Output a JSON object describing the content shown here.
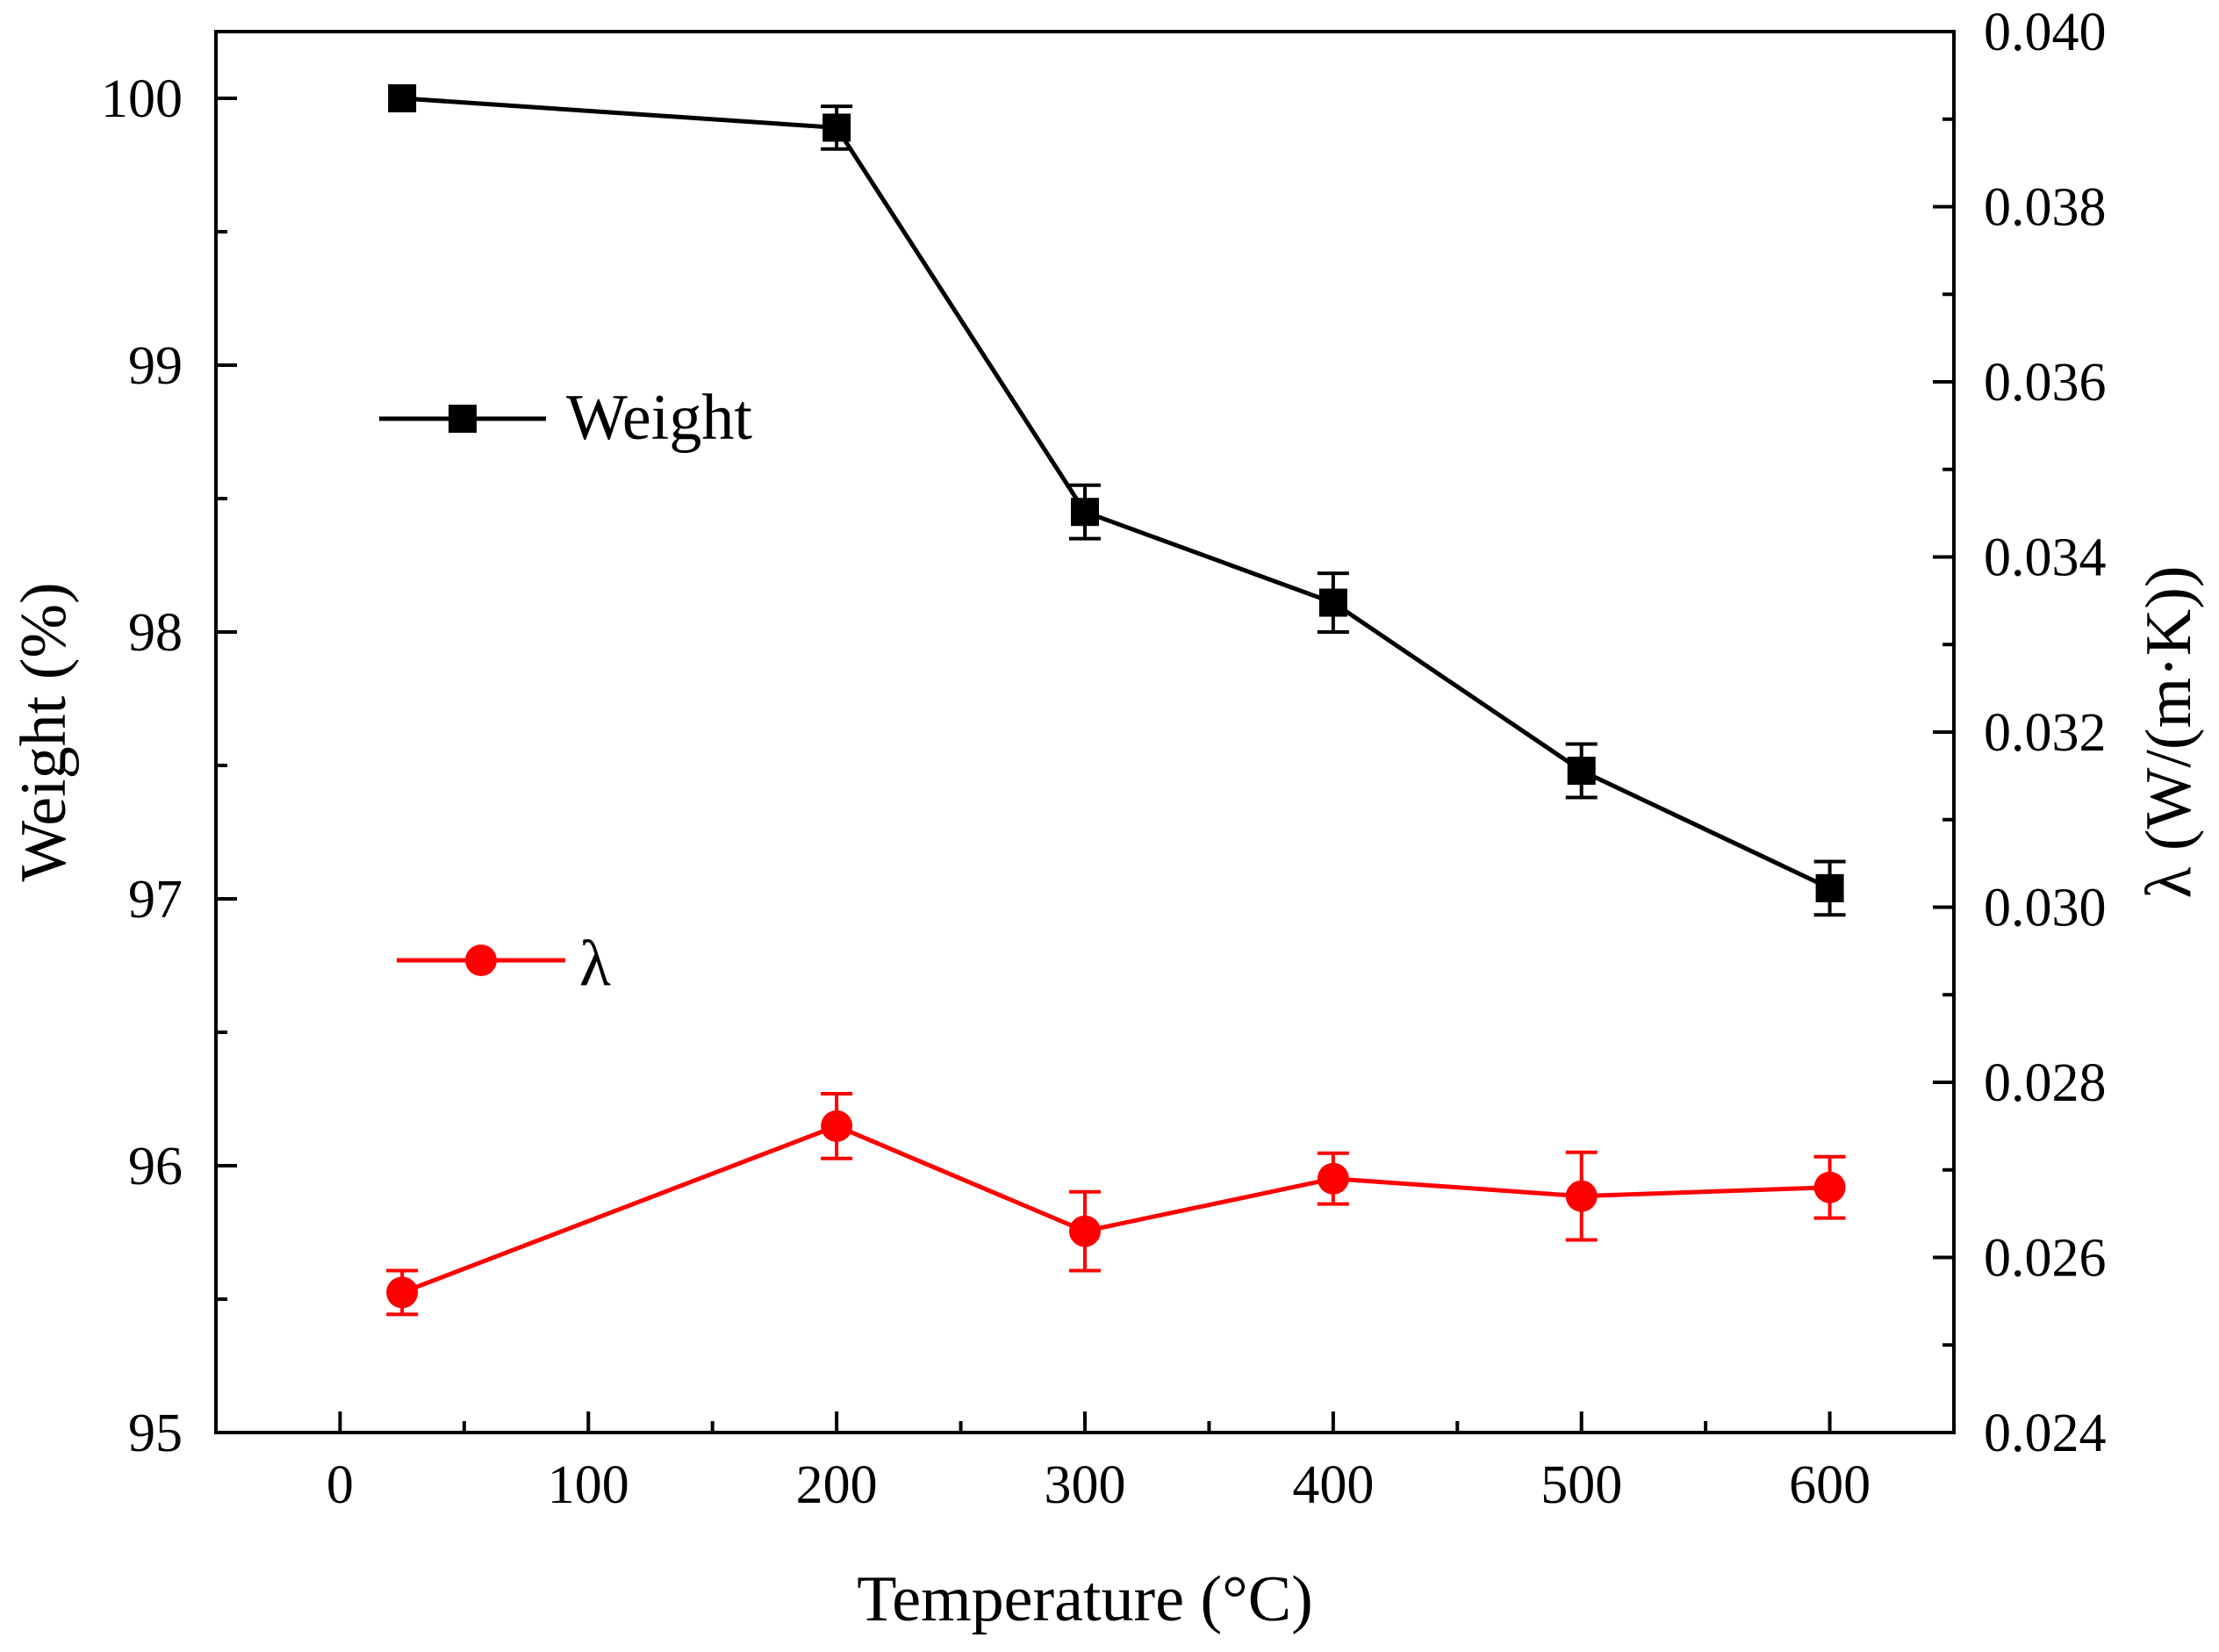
{
  "chart_data": {
    "type": "line",
    "title": "",
    "xlabel": "Temperature (°C)",
    "ylabel_left": "Weight (%)",
    "ylabel_right": "λ (W/(m·K))",
    "xlim": [
      -50,
      650
    ],
    "ylim_left": [
      95,
      100.25
    ],
    "ylim_right": [
      0.024,
      0.04
    ],
    "x_ticks": [
      0,
      100,
      200,
      300,
      400,
      500,
      600
    ],
    "y_left_ticks": [
      95,
      96,
      97,
      98,
      99,
      100
    ],
    "y_right_ticks": [
      0.024,
      0.026,
      0.028,
      0.03,
      0.032,
      0.034,
      0.036,
      0.038,
      0.04
    ],
    "grid": false,
    "legend_position": "center-left",
    "series": [
      {
        "name": "Weight",
        "axis": "left",
        "color": "#000000",
        "marker": "square",
        "x": [
          25,
          200,
          300,
          400,
          500,
          600
        ],
        "values": [
          100.0,
          99.89,
          98.45,
          98.11,
          97.48,
          97.04
        ],
        "errors": [
          0.0,
          0.08,
          0.1,
          0.11,
          0.1,
          0.1
        ]
      },
      {
        "name": "λ",
        "axis": "right",
        "color": "#ff0000",
        "marker": "circle",
        "x": [
          25,
          200,
          300,
          400,
          500,
          600
        ],
        "values": [
          0.0256,
          0.0275,
          0.0263,
          0.0269,
          0.0267,
          0.0268
        ],
        "errors": [
          0.00025,
          0.00037,
          0.00045,
          0.00029,
          0.0005,
          0.00035
        ]
      }
    ]
  }
}
